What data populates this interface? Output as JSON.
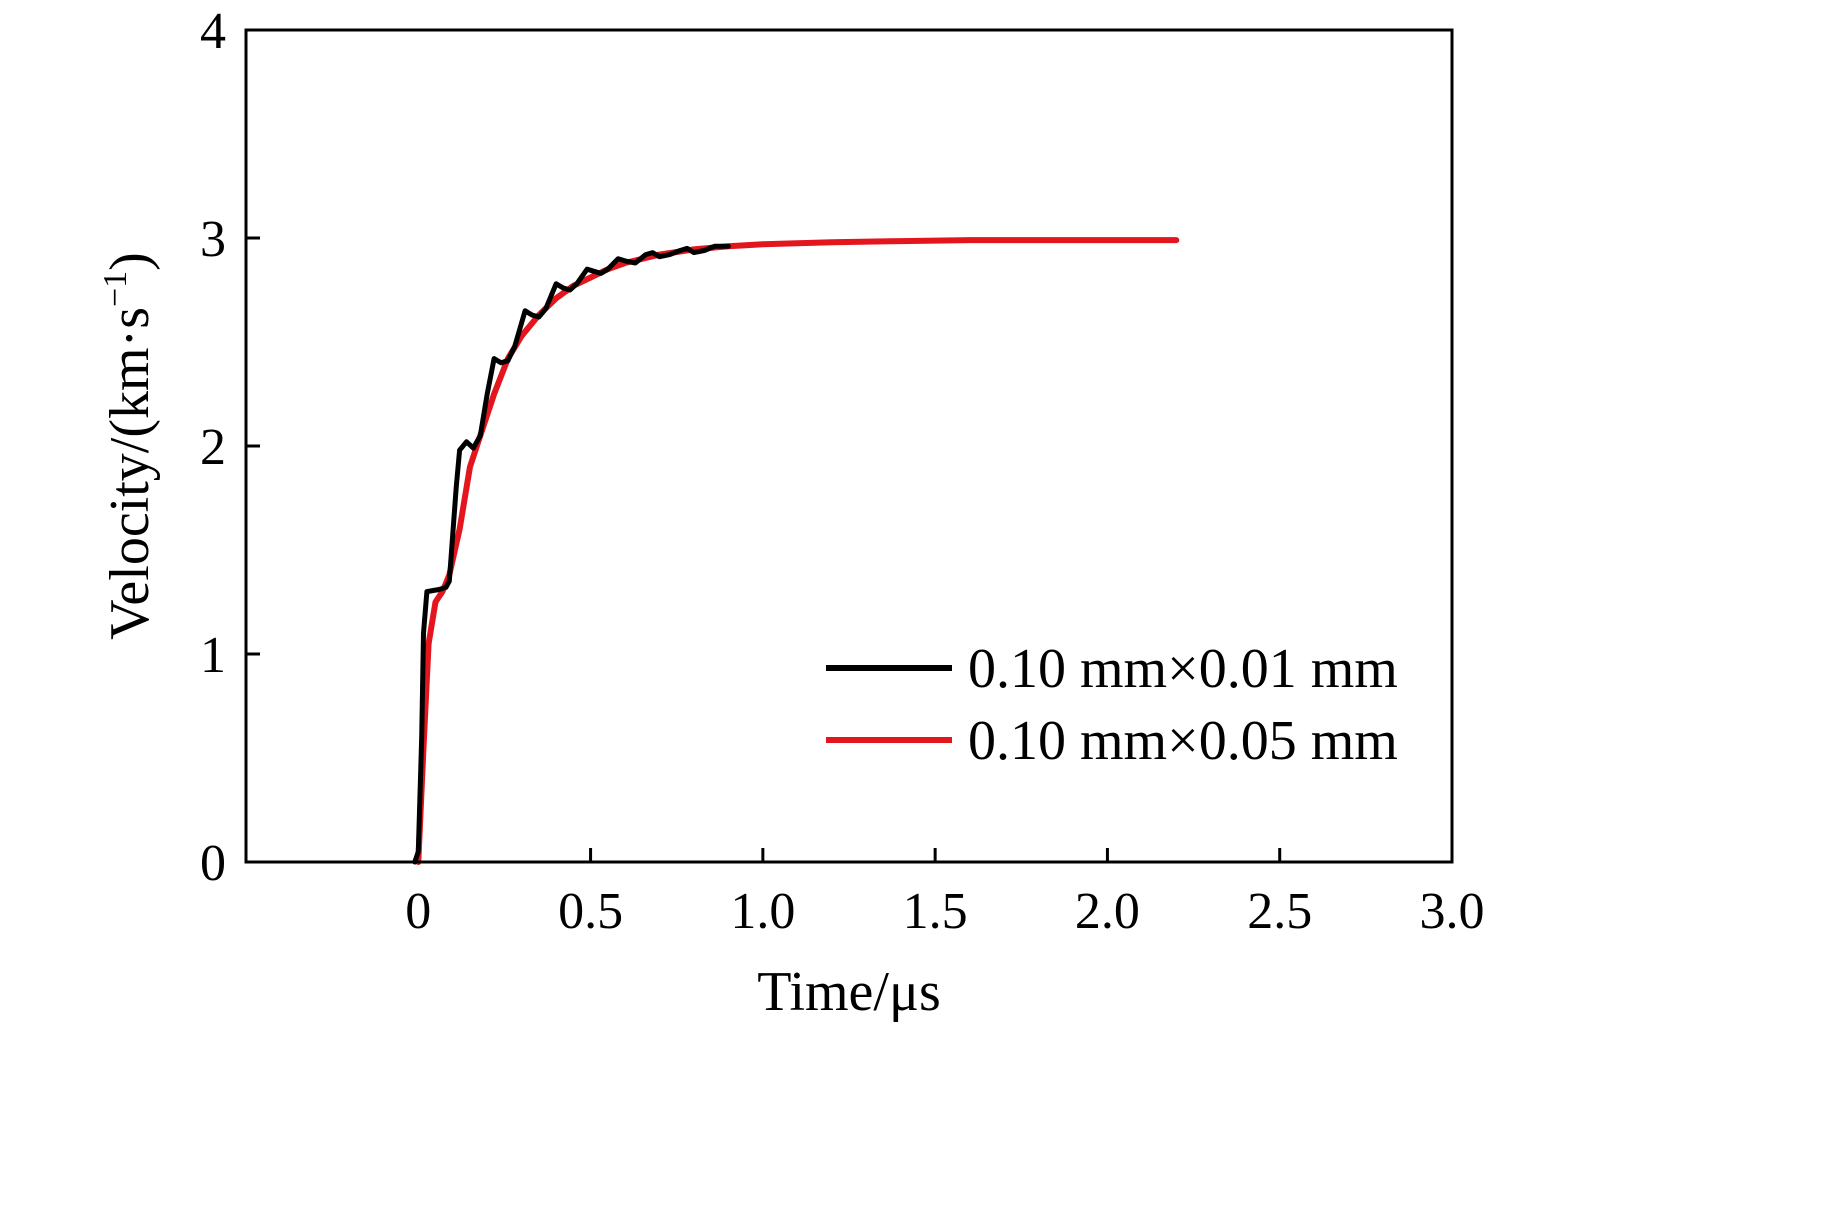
{
  "chart_data": {
    "type": "line",
    "title": "",
    "xlabel": "Time/μs",
    "ylabel": "Velocity/(km·s",
    "ylabel_superscript": "−1",
    "ylabel_close": ")",
    "xlim": [
      -0.5,
      3.0
    ],
    "ylim": [
      0,
      4
    ],
    "x_ticks": [
      0,
      0.5,
      1.0,
      1.5,
      2.0,
      2.5,
      3.0
    ],
    "x_tick_labels": [
      "0",
      "0.5",
      "1.0",
      "1.5",
      "2.0",
      "2.5",
      "3.0"
    ],
    "y_ticks": [
      0,
      1,
      2,
      3,
      4
    ],
    "y_tick_labels": [
      "0",
      "1",
      "2",
      "3",
      "4"
    ],
    "grid": false,
    "legend_position": "bottom-right",
    "series": [
      {
        "name": "0.10 mm×0.01 mm",
        "color": "#000000",
        "points": [
          [
            -0.01,
            0.0
          ],
          [
            0.0,
            0.05
          ],
          [
            0.01,
            0.6
          ],
          [
            0.015,
            1.1
          ],
          [
            0.025,
            1.3
          ],
          [
            0.06,
            1.31
          ],
          [
            0.08,
            1.32
          ],
          [
            0.09,
            1.35
          ],
          [
            0.11,
            1.8
          ],
          [
            0.12,
            1.98
          ],
          [
            0.14,
            2.02
          ],
          [
            0.16,
            1.99
          ],
          [
            0.18,
            2.05
          ],
          [
            0.2,
            2.25
          ],
          [
            0.22,
            2.42
          ],
          [
            0.24,
            2.4
          ],
          [
            0.26,
            2.41
          ],
          [
            0.28,
            2.48
          ],
          [
            0.31,
            2.65
          ],
          [
            0.33,
            2.63
          ],
          [
            0.35,
            2.62
          ],
          [
            0.37,
            2.66
          ],
          [
            0.4,
            2.78
          ],
          [
            0.42,
            2.76
          ],
          [
            0.44,
            2.75
          ],
          [
            0.46,
            2.78
          ],
          [
            0.49,
            2.85
          ],
          [
            0.51,
            2.84
          ],
          [
            0.53,
            2.83
          ],
          [
            0.55,
            2.85
          ],
          [
            0.58,
            2.9
          ],
          [
            0.6,
            2.89
          ],
          [
            0.63,
            2.88
          ],
          [
            0.66,
            2.92
          ],
          [
            0.68,
            2.93
          ],
          [
            0.7,
            2.91
          ],
          [
            0.73,
            2.92
          ],
          [
            0.76,
            2.94
          ],
          [
            0.78,
            2.95
          ],
          [
            0.8,
            2.93
          ],
          [
            0.83,
            2.94
          ],
          [
            0.86,
            2.96
          ],
          [
            0.9,
            2.96
          ]
        ]
      },
      {
        "name": "0.10 mm×0.05 mm",
        "color": "#e3161e",
        "points": [
          [
            0.0,
            0.0
          ],
          [
            0.015,
            0.55
          ],
          [
            0.03,
            1.05
          ],
          [
            0.05,
            1.25
          ],
          [
            0.07,
            1.3
          ],
          [
            0.09,
            1.38
          ],
          [
            0.12,
            1.6
          ],
          [
            0.15,
            1.9
          ],
          [
            0.18,
            2.05
          ],
          [
            0.22,
            2.25
          ],
          [
            0.26,
            2.42
          ],
          [
            0.3,
            2.53
          ],
          [
            0.35,
            2.63
          ],
          [
            0.4,
            2.71
          ],
          [
            0.45,
            2.77
          ],
          [
            0.5,
            2.81
          ],
          [
            0.55,
            2.85
          ],
          [
            0.6,
            2.88
          ],
          [
            0.7,
            2.92
          ],
          [
            0.8,
            2.945
          ],
          [
            0.9,
            2.96
          ],
          [
            1.0,
            2.97
          ],
          [
            1.2,
            2.98
          ],
          [
            1.4,
            2.985
          ],
          [
            1.6,
            2.99
          ],
          [
            1.8,
            2.99
          ],
          [
            2.0,
            2.99
          ],
          [
            2.2,
            2.99
          ]
        ]
      }
    ]
  }
}
